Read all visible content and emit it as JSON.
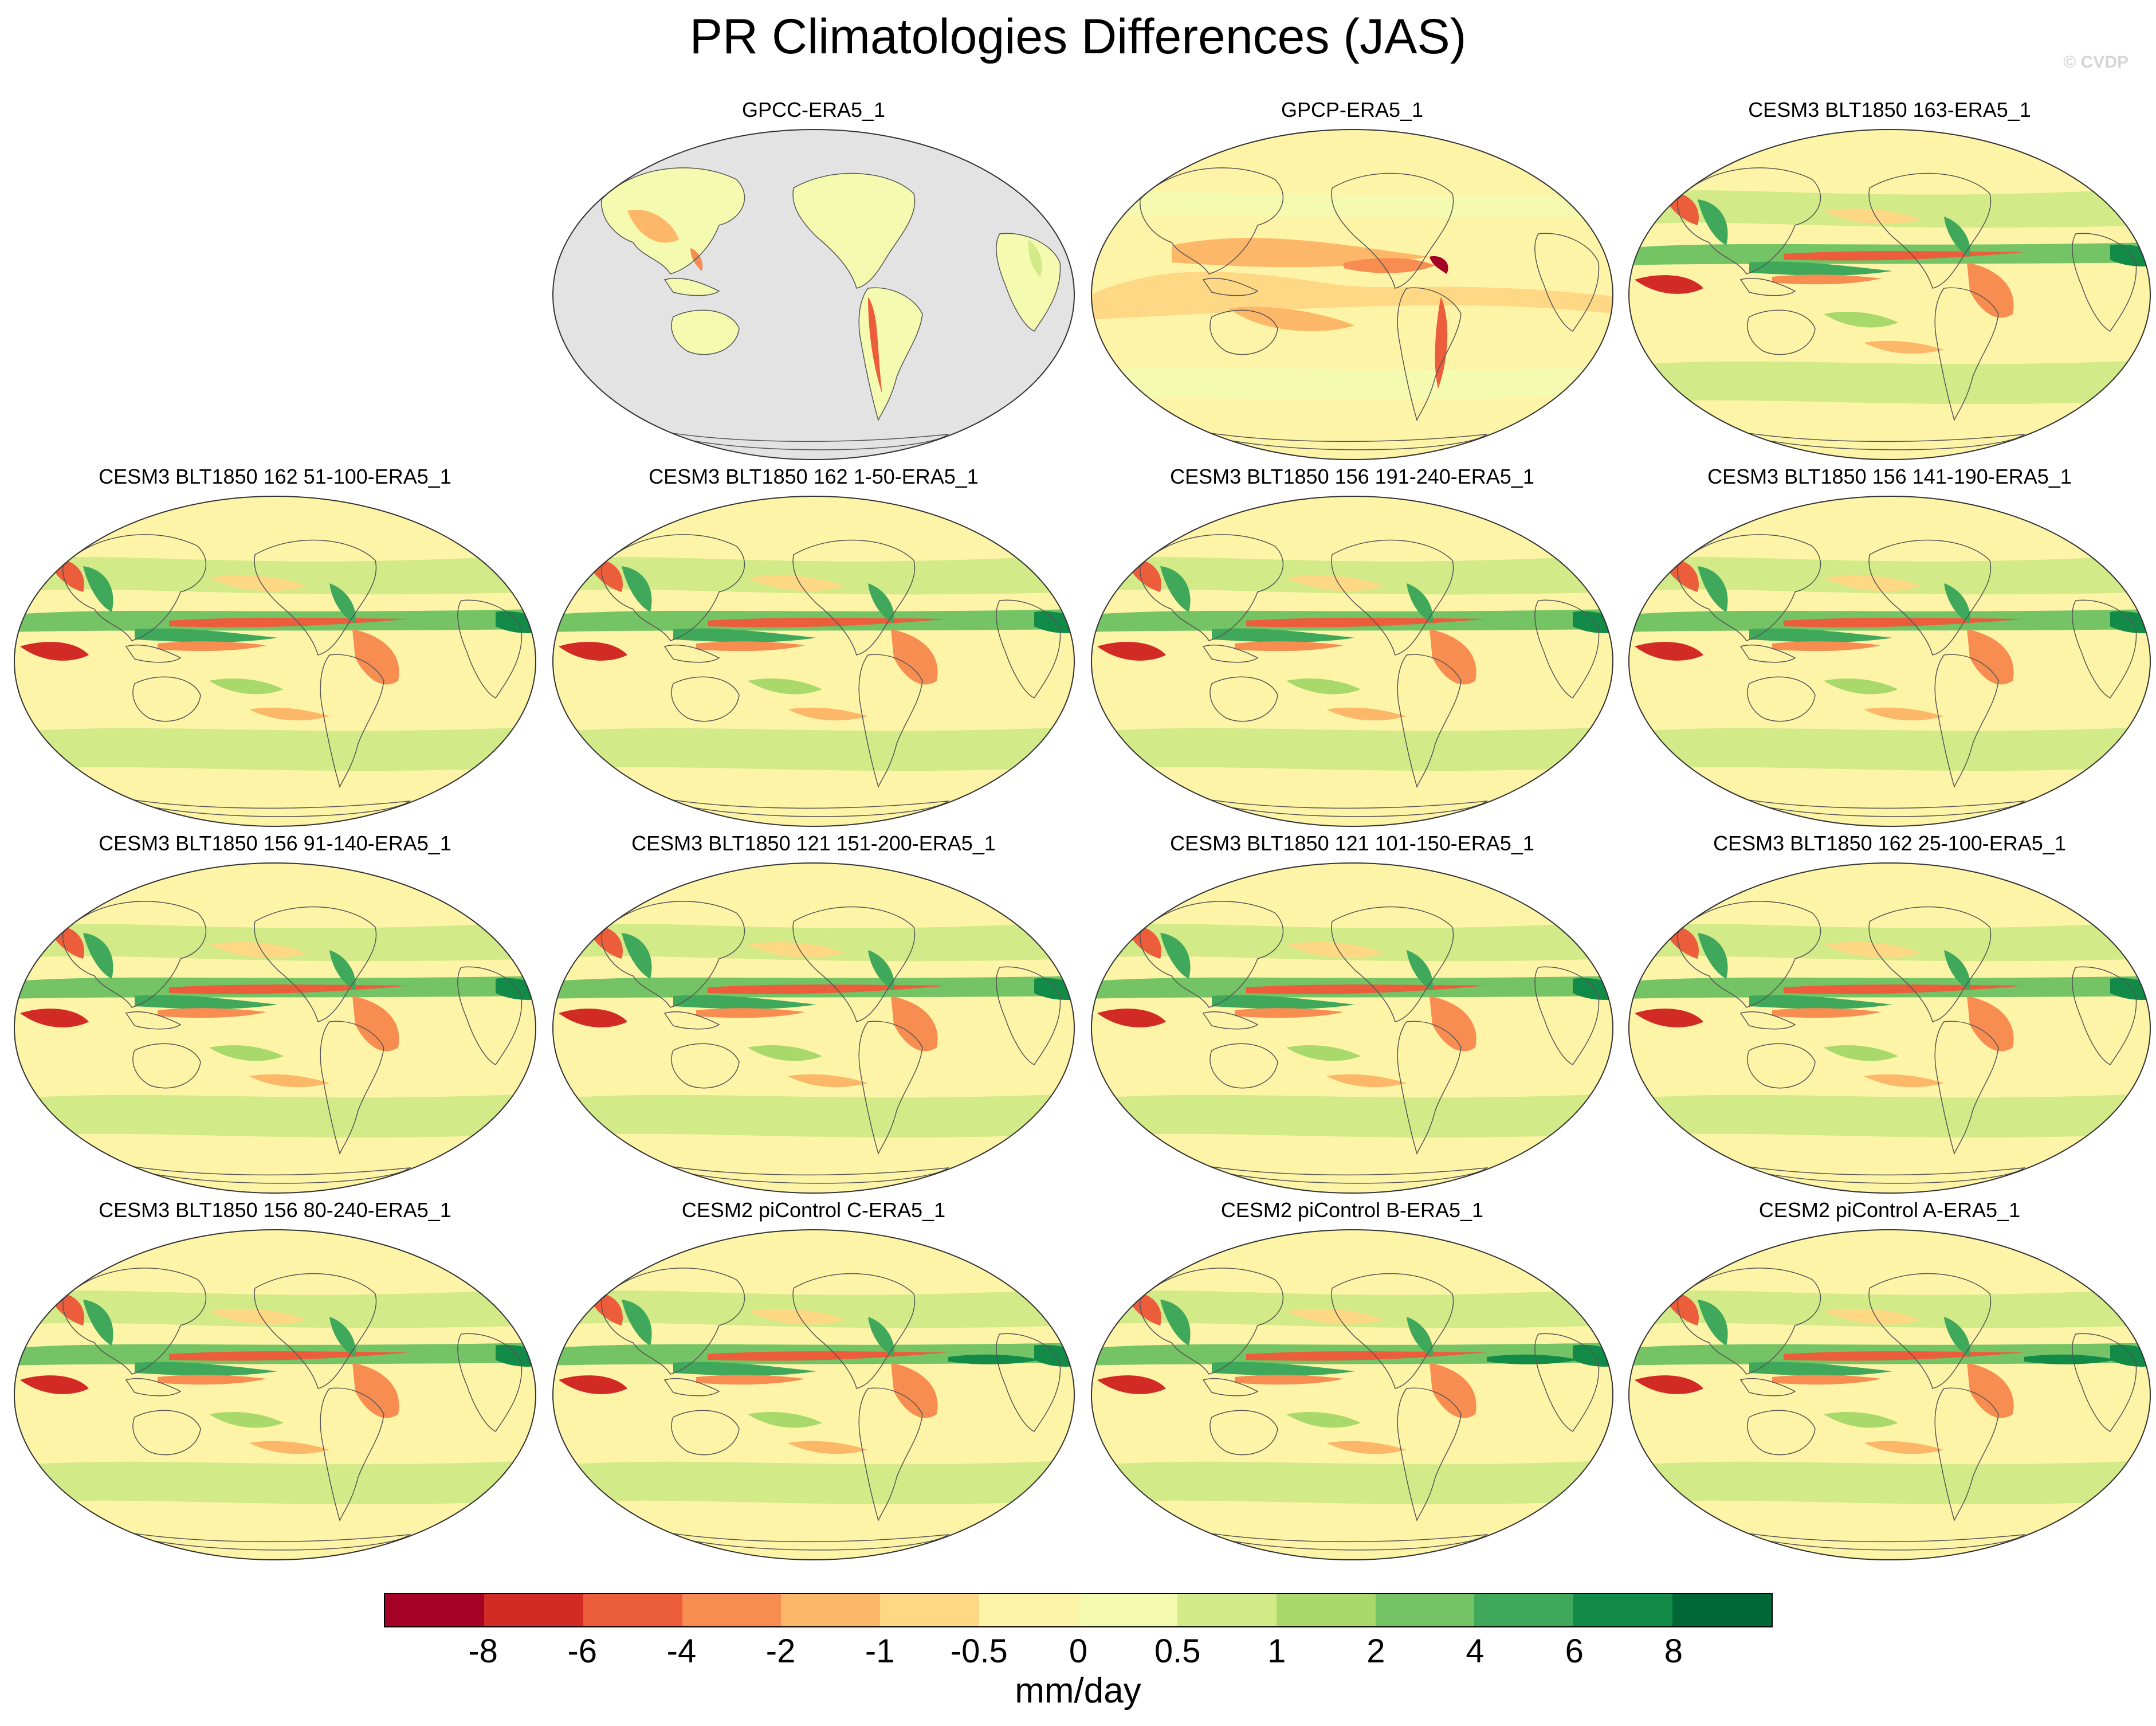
{
  "title": "PR Climatologies Differences (JAS)",
  "copyright": "© CVDP",
  "panels": [
    {
      "label": "GPCC-ERA5_1",
      "kind": "land"
    },
    {
      "label": "GPCP-ERA5_1",
      "kind": "obs"
    },
    {
      "label": "CESM3 BLT1850 163-ERA5_1",
      "kind": "model"
    },
    {
      "label": "CESM3 BLT1850 162 51-100-ERA5_1",
      "kind": "model"
    },
    {
      "label": "CESM3 BLT1850 162 1-50-ERA5_1",
      "kind": "model"
    },
    {
      "label": "CESM3 BLT1850 156 191-240-ERA5_1",
      "kind": "model"
    },
    {
      "label": "CESM3 BLT1850 156 141-190-ERA5_1",
      "kind": "model"
    },
    {
      "label": "CESM3 BLT1850 156 91-140-ERA5_1",
      "kind": "model"
    },
    {
      "label": "CESM3 BLT1850 121 151-200-ERA5_1",
      "kind": "model"
    },
    {
      "label": "CESM3 BLT1850 121 101-150-ERA5_1",
      "kind": "model"
    },
    {
      "label": "CESM3 BLT1850 162 25-100-ERA5_1",
      "kind": "model"
    },
    {
      "label": "CESM3 BLT1850 156 80-240-ERA5_1",
      "kind": "model"
    },
    {
      "label": "CESM2 piControl C-ERA5_1",
      "kind": "model2"
    },
    {
      "label": "CESM2 piControl B-ERA5_1",
      "kind": "model2"
    },
    {
      "label": "CESM2 piControl A-ERA5_1",
      "kind": "model2"
    }
  ],
  "colorbar": {
    "units": "mm/day",
    "colors": [
      "#a50026",
      "#d22b26",
      "#ec5d3b",
      "#f88d52",
      "#fdb768",
      "#fed884",
      "#fef4a8",
      "#f4fab0",
      "#d2ea88",
      "#a8d96a",
      "#74c364",
      "#3fa85b",
      "#128a48",
      "#006837"
    ],
    "levels": [
      "-8",
      "-6",
      "-4",
      "-2",
      "-1",
      "-0.5",
      "0",
      "0.5",
      "1",
      "2",
      "4",
      "6",
      "8"
    ]
  },
  "land_color": "#e3e3e3",
  "coast_color": "#555555"
}
